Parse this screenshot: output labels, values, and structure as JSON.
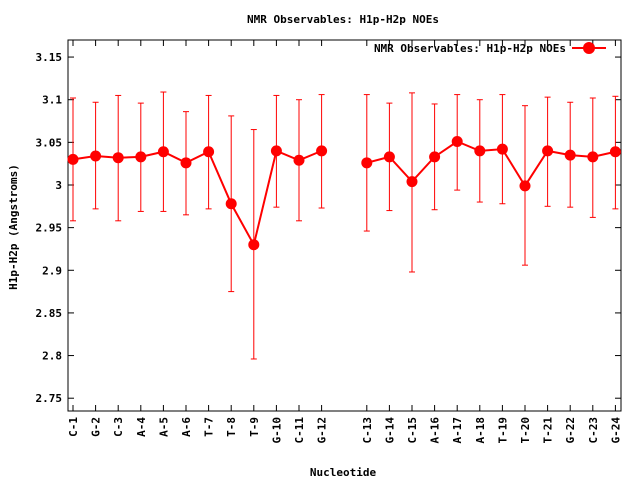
{
  "chart_data": {
    "type": "line",
    "title": "NMR Observables: H1p-H2p NOEs",
    "xlabel": "Nucleotide",
    "ylabel": "H1p-H2p (Angstroms)",
    "ylim": [
      2.735,
      3.17
    ],
    "yticks": [
      2.75,
      2.8,
      2.85,
      2.9,
      2.95,
      3,
      3.05,
      3.1,
      3.15
    ],
    "ytick_labels": [
      "2.75",
      "2.8",
      "2.85",
      "2.9",
      "2.95",
      "3",
      "3.05",
      "3.1",
      "3.15"
    ],
    "grid": false,
    "legend_position": "top-right",
    "series": [
      {
        "name": "NMR Observables: H1p-H2p NOEs",
        "color": "#ff0000",
        "segments": [
          {
            "categories": [
              "C-1",
              "G-2",
              "C-3",
              "A-4",
              "A-5",
              "A-6",
              "T-7",
              "T-8",
              "T-9",
              "G-10",
              "C-11",
              "G-12"
            ],
            "values": [
              3.03,
              3.034,
              3.032,
              3.033,
              3.039,
              3.026,
              3.039,
              2.978,
              2.93,
              3.04,
              3.029,
              3.04
            ],
            "err_low": [
              2.958,
              2.972,
              2.958,
              2.969,
              2.969,
              2.965,
              2.972,
              2.875,
              2.796,
              2.974,
              2.958,
              2.973
            ],
            "err_high": [
              3.102,
              3.097,
              3.105,
              3.096,
              3.109,
              3.086,
              3.105,
              3.081,
              3.065,
              3.105,
              3.1,
              3.106
            ]
          },
          {
            "categories": [
              "C-13",
              "G-14",
              "C-15",
              "A-16",
              "A-17",
              "A-18",
              "T-19",
              "T-20",
              "T-21",
              "G-22",
              "C-23",
              "G-24"
            ],
            "values": [
              3.026,
              3.033,
              3.004,
              3.033,
              3.051,
              3.04,
              3.042,
              2.999,
              3.04,
              3.035,
              3.033,
              3.039
            ],
            "err_low": [
              2.946,
              2.97,
              2.898,
              2.971,
              2.994,
              2.98,
              2.978,
              2.906,
              2.975,
              2.974,
              2.962,
              2.972
            ],
            "err_high": [
              3.106,
              3.096,
              3.108,
              3.095,
              3.106,
              3.1,
              3.106,
              3.093,
              3.103,
              3.097,
              3.102,
              3.104
            ]
          }
        ]
      }
    ]
  }
}
